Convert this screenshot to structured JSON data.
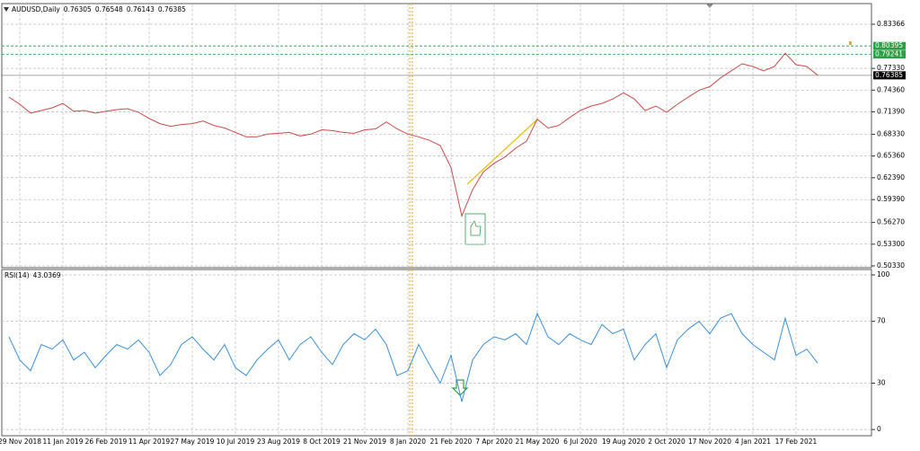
{
  "chart_data": [
    {
      "type": "line",
      "title": "AUDUSD,Daily",
      "ohlc": [
        0.76305,
        0.76548,
        0.76143,
        0.76385
      ],
      "values": [
        0.7339,
        0.7243,
        0.7122,
        0.7158,
        0.7194,
        0.7254,
        0.7146,
        0.7158,
        0.7122,
        0.7146,
        0.717,
        0.7182,
        0.7134,
        0.705,
        0.6978,
        0.6942,
        0.6966,
        0.6978,
        0.7014,
        0.6954,
        0.6918,
        0.6858,
        0.6798,
        0.6798,
        0.6834,
        0.6846,
        0.6858,
        0.681,
        0.6834,
        0.6894,
        0.6882,
        0.6858,
        0.6846,
        0.6894,
        0.6906,
        0.7002,
        0.6906,
        0.6834,
        0.6798,
        0.675,
        0.6678,
        0.6377,
        0.5716,
        0.6076,
        0.6317,
        0.6437,
        0.6521,
        0.6642,
        0.6738,
        0.7038,
        0.6918,
        0.6954,
        0.7062,
        0.7158,
        0.7219,
        0.7254,
        0.7315,
        0.7399,
        0.7315,
        0.7158,
        0.7219,
        0.7134,
        0.7243,
        0.7339,
        0.7435,
        0.7483,
        0.7604,
        0.77,
        0.7796,
        0.776,
        0.77,
        0.776,
        0.794,
        0.7784,
        0.776,
        0.764
      ],
      "color": "#c94a4a",
      "ylim": [
        0.5008,
        0.8607
      ],
      "yticks": [
        0.83366,
        {
          "value": 0.7733,
          "label": "0.77330"
        },
        {
          "value": 0.7436,
          "label": "0.74360"
        },
        {
          "value": 0.7139,
          "label": "0.71390"
        },
        {
          "value": 0.6833,
          "label": "0.68330"
        },
        {
          "value": 0.6536,
          "label": "0.65360"
        },
        {
          "value": 0.6239,
          "label": "0.62390"
        },
        {
          "value": 0.5939,
          "label": "0.59390"
        },
        {
          "value": 0.5627,
          "label": "0.56270"
        },
        {
          "value": 0.533,
          "label": "0.53300"
        },
        {
          "value": 0.5033,
          "label": "0.50330"
        }
      ],
      "levels": [
        {
          "value": 0.80395,
          "color": "#2e9e44"
        },
        {
          "value": 0.79241,
          "color": "#2e9e44"
        },
        {
          "value": 0.76385,
          "color": "#000000"
        }
      ],
      "grid": true
    },
    {
      "type": "line",
      "title": "RSI(14)",
      "categories": [
        null,
        "29 Nov 2018",
        null,
        null,
        null,
        "11 Jan 2019",
        null,
        null,
        null,
        "26 Feb 2019",
        null,
        null,
        null,
        "11 Apr 2019",
        null,
        null,
        null,
        "27 May 2019",
        null,
        null,
        null,
        "10 Jul 2019",
        null,
        null,
        null,
        "23 Aug 2019",
        null,
        null,
        null,
        "8 Oct 2019",
        null,
        null,
        null,
        "21 Nov 2019",
        null,
        null,
        null,
        "8 Jan 2020",
        null,
        null,
        null,
        "21 Feb 2020",
        null,
        null,
        null,
        "7 Apr 2020",
        null,
        null,
        null,
        "21 May 2020",
        null,
        null,
        null,
        "6 Jul 2020",
        null,
        null,
        null,
        "19 Aug 2020",
        null,
        null,
        null,
        "2 Oct 2020",
        null,
        null,
        null,
        "17 Nov 2020",
        null,
        null,
        null,
        "4 Jan 2021",
        null,
        null,
        null,
        "17 Feb 2021",
        null,
        null
      ],
      "values": [
        60,
        45,
        38,
        55,
        52,
        58,
        45,
        50,
        40,
        48,
        55,
        52,
        58,
        50,
        35,
        42,
        55,
        60,
        52,
        45,
        55,
        40,
        35,
        45,
        52,
        58,
        45,
        55,
        60,
        50,
        42,
        55,
        62,
        58,
        65,
        55,
        35,
        38,
        55,
        42,
        30,
        48,
        18,
        45,
        55,
        60,
        58,
        62,
        55,
        75,
        60,
        55,
        62,
        58,
        55,
        68,
        62,
        65,
        45,
        55,
        62,
        40,
        58,
        65,
        70,
        62,
        72,
        75,
        62,
        55,
        50,
        45,
        72,
        48,
        52,
        43.0369
      ],
      "color": "#3a8fd8",
      "ylim": [
        -4,
        103.5
      ],
      "yticks": [
        0,
        30,
        70,
        100
      ],
      "grid": true
    }
  ]
}
